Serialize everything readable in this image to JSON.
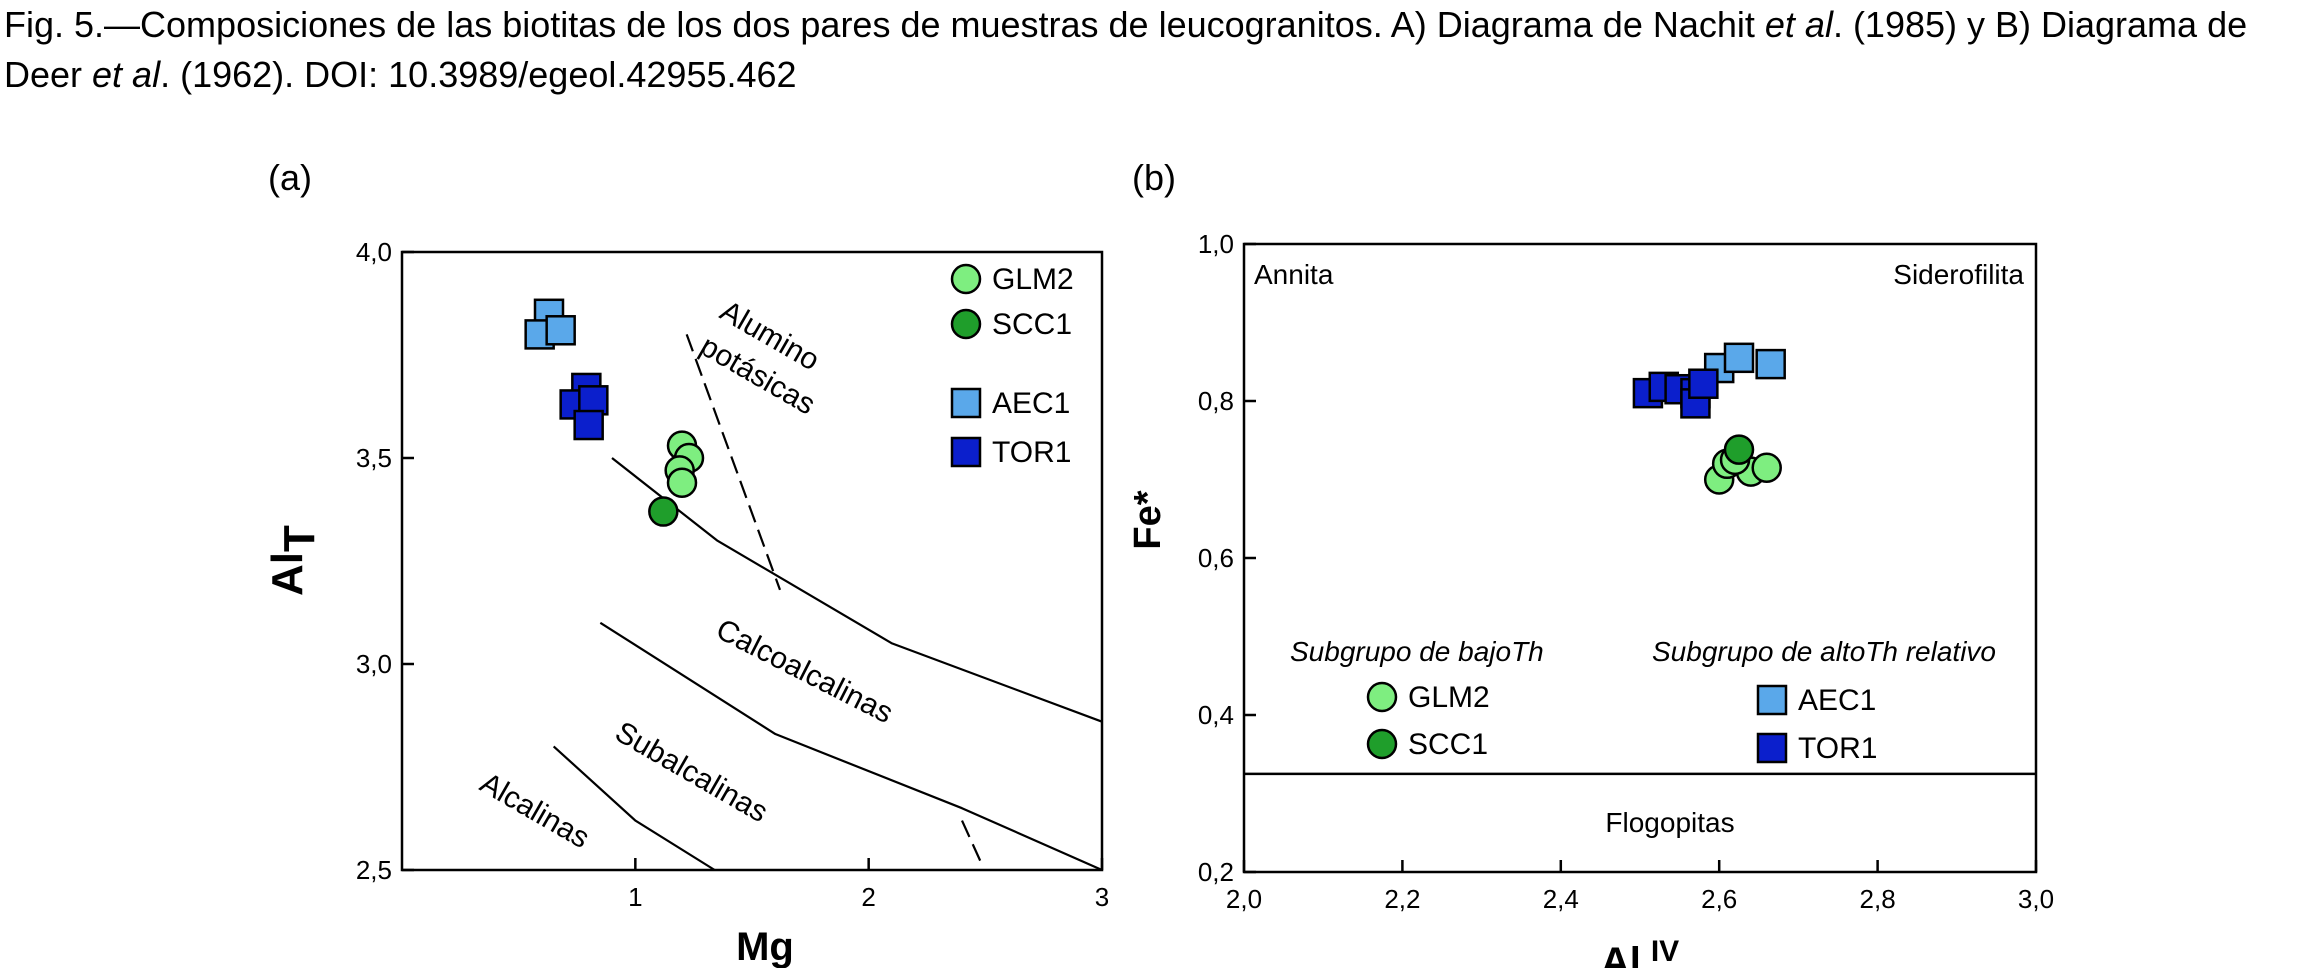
{
  "caption": {
    "p1": "Fig. 5.—Composiciones de las biotitas de los dos pares de muestras de leucogranitos. A) Diagrama de Nachit ",
    "et_al_1": "et al",
    "p2": ". (1985) y B) Diagrama de Deer ",
    "et_al_2": "et al",
    "p3": ". (1962). DOI: 10.3989/egeol.42955.462"
  },
  "chart_data": [
    {
      "type": "scatter",
      "panel_label": "(a)",
      "xlabel": "Mg",
      "ylabel_main": "Al",
      "ylabel_sub": "T",
      "xlim": [
        0,
        3
      ],
      "ylim": [
        2.5,
        4.0
      ],
      "x_ticks": [
        1,
        2,
        3
      ],
      "x_tick_labels": [
        "1",
        "2",
        "3"
      ],
      "y_ticks": [
        2.5,
        3.0,
        3.5,
        4.0
      ],
      "y_tick_labels": [
        "2,5",
        "3,0",
        "3,5",
        "4,0"
      ],
      "legend_position": "top-right",
      "region_labels": [
        "Alumino",
        "potásicas",
        "Calcoalcalinas",
        "Subalcalinas",
        "Alcalinas"
      ],
      "series": [
        {
          "name": "GLM2",
          "marker": "circle",
          "color": "#7eee80",
          "points": [
            [
              1.2,
              3.53
            ],
            [
              1.23,
              3.5
            ],
            [
              1.19,
              3.47
            ],
            [
              1.2,
              3.44
            ]
          ]
        },
        {
          "name": "SCC1",
          "marker": "circle",
          "color": "#1f9e2b",
          "points": [
            [
              1.12,
              3.37
            ]
          ]
        },
        {
          "name": "AEC1",
          "marker": "square",
          "color": "#5aa8ea",
          "points": [
            [
              0.63,
              3.85
            ],
            [
              0.59,
              3.8
            ],
            [
              0.68,
              3.81
            ]
          ]
        },
        {
          "name": "TOR1",
          "marker": "square",
          "color": "#0b1fcc",
          "points": [
            [
              0.79,
              3.67
            ],
            [
              0.74,
              3.63
            ],
            [
              0.82,
              3.64
            ],
            [
              0.8,
              3.58
            ]
          ]
        }
      ],
      "boundary_lines": [
        {
          "style": "solid",
          "points": [
            [
              0.9,
              3.5
            ],
            [
              1.35,
              3.3
            ],
            [
              2.1,
              3.05
            ],
            [
              3.0,
              2.86
            ]
          ]
        },
        {
          "style": "solid",
          "points": [
            [
              0.85,
              3.1
            ],
            [
              1.6,
              2.83
            ],
            [
              2.4,
              2.65
            ],
            [
              3.0,
              2.5
            ]
          ]
        },
        {
          "style": "solid",
          "points": [
            [
              0.65,
              2.8
            ],
            [
              1.0,
              2.62
            ],
            [
              1.34,
              2.5
            ]
          ]
        },
        {
          "style": "dashed",
          "points": [
            [
              1.22,
              3.8
            ],
            [
              1.62,
              3.18
            ]
          ]
        },
        {
          "style": "dashed",
          "points": [
            [
              2.4,
              2.62
            ],
            [
              2.48,
              2.52
            ]
          ]
        }
      ]
    },
    {
      "type": "scatter",
      "panel_label": "(b)",
      "xlabel_main": "Al",
      "xlabel_sup": "IV",
      "ylabel": "Fe*",
      "xlim": [
        2.0,
        3.0
      ],
      "ylim": [
        0.2,
        1.0
      ],
      "x_ticks": [
        2.0,
        2.2,
        2.4,
        2.6,
        2.8,
        3.0
      ],
      "x_tick_labels": [
        "2,0",
        "2,2",
        "2,4",
        "2,6",
        "2,8",
        "3,0"
      ],
      "y_ticks": [
        0.2,
        0.4,
        0.6,
        0.8,
        1.0
      ],
      "y_tick_labels": [
        "0,2",
        "0,4",
        "0,6",
        "0,8",
        "1,0"
      ],
      "divider_y": 0.325,
      "corner_labels": {
        "top_left": "Annita",
        "top_right": "Siderofilita",
        "bottom": "Flogopitas"
      },
      "legend_groups": [
        {
          "title": "Subgrupo de bajoTh",
          "items": [
            "GLM2",
            "SCC1"
          ]
        },
        {
          "title": "Subgrupo de altoTh relativo",
          "items": [
            "AEC1",
            "TOR1"
          ]
        }
      ],
      "series": [
        {
          "name": "GLM2",
          "marker": "circle",
          "color": "#7eee80",
          "points": [
            [
              2.6,
              0.7
            ],
            [
              2.61,
              0.72
            ],
            [
              2.64,
              0.71
            ],
            [
              2.66,
              0.715
            ],
            [
              2.62,
              0.725
            ]
          ]
        },
        {
          "name": "SCC1",
          "marker": "circle",
          "color": "#1f9e2b",
          "points": [
            [
              2.625,
              0.738
            ]
          ]
        },
        {
          "name": "AEC1",
          "marker": "square",
          "color": "#5aa8ea",
          "points": [
            [
              2.6,
              0.842
            ],
            [
              2.625,
              0.855
            ],
            [
              2.665,
              0.847
            ]
          ]
        },
        {
          "name": "TOR1",
          "marker": "square",
          "color": "#0b1fcc",
          "points": [
            [
              2.51,
              0.81
            ],
            [
              2.53,
              0.818
            ],
            [
              2.55,
              0.815
            ],
            [
              2.57,
              0.81
            ],
            [
              2.57,
              0.797
            ],
            [
              2.58,
              0.822
            ]
          ]
        }
      ]
    }
  ]
}
